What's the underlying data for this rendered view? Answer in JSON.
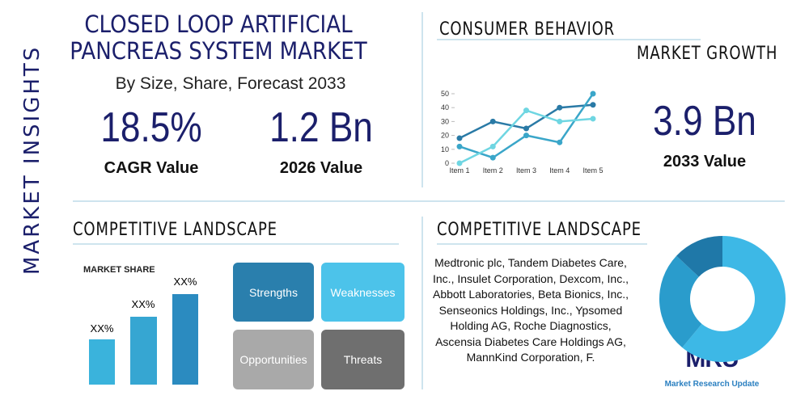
{
  "header": {
    "title": "CLOSED LOOP ARTIFICIAL PANCREAS SYSTEM MARKET",
    "subtitle": "By Size, Share, Forecast 2033",
    "side_label": "MARKET INSIGHTS"
  },
  "stats": [
    {
      "value": "18.5%",
      "label": "CAGR Value"
    },
    {
      "value": "1.2 Bn",
      "label": "2026 Value"
    },
    {
      "value": "3.9 Bn",
      "label": "2033 Value"
    }
  ],
  "consumer_behavior": {
    "title": "CONSUMER BEHAVIOR",
    "subtitle": "MARKET GROWTH",
    "chart": {
      "type": "line",
      "categories": [
        "Item 1",
        "Item 2",
        "Item 3",
        "Item 4",
        "Item 5"
      ],
      "ylim": [
        0,
        50
      ],
      "yticks": [
        0,
        10,
        20,
        30,
        40,
        50
      ],
      "series": [
        {
          "color": "#2a7aa6",
          "values": [
            18,
            30,
            25,
            40,
            42
          ]
        },
        {
          "color": "#3aa6c9",
          "values": [
            12,
            4,
            20,
            15,
            50
          ]
        },
        {
          "color": "#6fd6e2",
          "values": [
            0,
            12,
            38,
            30,
            32
          ]
        }
      ]
    }
  },
  "competitive_left": {
    "title": "COMPETITIVE LANDSCAPE",
    "market_share": {
      "title": "MARKET SHARE",
      "bar_labels": [
        "XX%",
        "XX%",
        "XX%"
      ]
    },
    "swot": [
      "Strengths",
      "Weaknesses",
      "Opportunities",
      "Threats"
    ]
  },
  "competitive_right": {
    "title": "COMPETITIVE LANDSCAPE",
    "companies": "Medtronic plc, Tandem Diabetes Care, Inc., Insulet Corporation, Dexcom, Inc., Abbott Laboratories, Beta Bionics, Inc., Senseonics Holdings, Inc., Ypsomed Holding AG, Roche Diagnostics, Ascensia Diabetes Care Holdings AG, MannKind Corporation, F.",
    "donut": {
      "type": "pie",
      "values": [
        61,
        26,
        13
      ],
      "colors": [
        "#3db8e6",
        "#2a9ccc",
        "#1f78a8"
      ]
    }
  },
  "logo": {
    "mark": "MRU",
    "text": "Market Research Update"
  }
}
